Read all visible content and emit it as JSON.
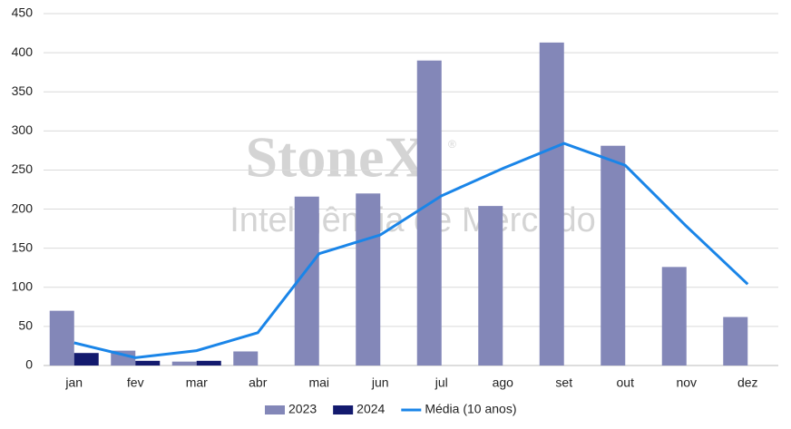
{
  "chart_data": {
    "type": "bar",
    "watermark": {
      "logo": "StoneX",
      "symbol": "®",
      "subtitle": "Inteligência de Mercado"
    },
    "categories": [
      "jan",
      "fev",
      "mar",
      "abr",
      "mai",
      "jun",
      "jul",
      "ago",
      "set",
      "out",
      "nov",
      "dez"
    ],
    "series": [
      {
        "name": "2023",
        "type": "bar",
        "color": "#8387b8",
        "values": [
          70,
          19,
          5,
          18,
          216,
          220,
          390,
          204,
          413,
          281,
          126,
          62
        ]
      },
      {
        "name": "2024",
        "type": "bar",
        "color": "#131a6e",
        "values": [
          16,
          6,
          6,
          null,
          null,
          null,
          null,
          null,
          null,
          null,
          null,
          null
        ]
      },
      {
        "name": "Média (10 anos)",
        "type": "line",
        "color": "#1a85e8",
        "values": [
          29,
          10,
          19,
          42,
          143,
          167,
          217,
          252,
          284,
          256,
          178,
          104
        ]
      }
    ],
    "ylim": [
      0,
      450
    ],
    "yticks": [
      0,
      50,
      100,
      150,
      200,
      250,
      300,
      350,
      400,
      450
    ],
    "grid": true,
    "legend": "bottom"
  }
}
